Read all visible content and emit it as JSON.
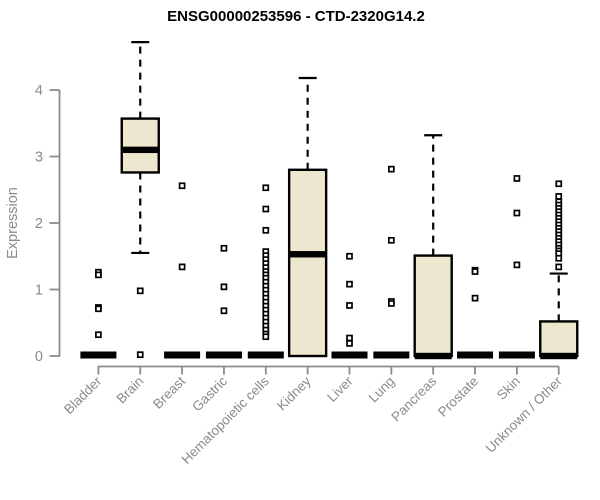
{
  "header": {
    "title": "ENSG00000253596 - CTD-2320G14.2"
  },
  "chart_data": {
    "type": "boxplot",
    "title": "ENSG00000253596 - CTD-2320G14.2",
    "ylabel": "Expression",
    "xlabel": "",
    "ylim": [
      0,
      4.8
    ],
    "yticks": [
      0,
      1,
      2,
      3,
      4
    ],
    "grid": false,
    "legend": "none",
    "categories": [
      "Bladder",
      "Brain",
      "Breast",
      "Gastric",
      "Hematopoietic cells",
      "Kidney",
      "Liver",
      "Lung",
      "Pancreas",
      "Prostate",
      "Skin",
      "Unknown / Other"
    ],
    "groups": [
      {
        "name": "Bladder",
        "q1": 0,
        "median": 0,
        "q3": 0,
        "whisker_low": 0,
        "whisker_high": 0,
        "outliers": [
          1.26,
          1.22,
          0.73,
          0.71,
          0.32
        ]
      },
      {
        "name": "Brain",
        "q1": 2.76,
        "median": 3.1,
        "q3": 3.57,
        "whisker_low": 1.55,
        "whisker_high": 4.72,
        "outliers": [
          0.98,
          0.02
        ]
      },
      {
        "name": "Breast",
        "q1": 0,
        "median": 0,
        "q3": 0,
        "whisker_low": 0,
        "whisker_high": 0,
        "outliers": [
          2.56,
          1.34
        ]
      },
      {
        "name": "Gastric",
        "q1": 0,
        "median": 0,
        "q3": 0,
        "whisker_low": 0,
        "whisker_high": 0,
        "outliers": [
          1.62,
          1.04,
          0.68
        ]
      },
      {
        "name": "Hematopoietic cells",
        "q1": 0,
        "median": 0,
        "q3": 0,
        "whisker_low": 0,
        "whisker_high": 0,
        "outliers": [
          2.53,
          2.21,
          1.89,
          1.57,
          1.51,
          1.45,
          1.39,
          1.33,
          1.27,
          1.22,
          1.17,
          1.11,
          1.05,
          0.99,
          0.93,
          0.87,
          0.81,
          0.75,
          0.69,
          0.63,
          0.57,
          0.51,
          0.45,
          0.39,
          0.33,
          0.29
        ]
      },
      {
        "name": "Kidney",
        "q1": 0,
        "median": 1.53,
        "q3": 2.8,
        "whisker_low": 0,
        "whisker_high": 4.18,
        "outliers": []
      },
      {
        "name": "Liver",
        "q1": 0,
        "median": 0,
        "q3": 0,
        "whisker_low": 0,
        "whisker_high": 0,
        "outliers": [
          1.5,
          1.08,
          0.76,
          0.27,
          0.19
        ]
      },
      {
        "name": "Lung",
        "q1": 0,
        "median": 0,
        "q3": 0,
        "whisker_low": 0,
        "whisker_high": 0,
        "outliers": [
          2.81,
          1.74,
          0.82,
          0.79
        ]
      },
      {
        "name": "Pancreas",
        "q1": 0,
        "median": 0,
        "q3": 1.51,
        "whisker_low": 0,
        "whisker_high": 3.32,
        "outliers": []
      },
      {
        "name": "Prostate",
        "q1": 0,
        "median": 0,
        "q3": 0,
        "whisker_low": 0,
        "whisker_high": 0,
        "outliers": [
          1.29,
          1.27,
          0.87
        ]
      },
      {
        "name": "Skin",
        "q1": 0,
        "median": 0,
        "q3": 0,
        "whisker_low": 0,
        "whisker_high": 0,
        "outliers": [
          2.67,
          2.15,
          1.37
        ]
      },
      {
        "name": "Unknown / Other",
        "q1": 0,
        "median": 0,
        "q3": 0.52,
        "whisker_low": 0,
        "whisker_high": 1.24,
        "outliers": [
          2.59,
          2.4,
          2.32,
          2.27,
          2.22,
          2.17,
          2.12,
          2.07,
          2.02,
          1.97,
          1.92,
          1.87,
          1.82,
          1.77,
          1.72,
          1.67,
          1.62,
          1.58,
          1.54,
          1.47,
          1.34
        ]
      }
    ],
    "colors": {
      "box_fill": "#ede7cf",
      "box_stroke": "#000000",
      "median": "#000000",
      "whisker": "#000000",
      "outlier_stroke": "#000000",
      "outlier_fill": "#ffffff",
      "axis": "#8b8b8b",
      "tick_label": "#8b8b8b",
      "axis_label": "#8b8b8b",
      "title": "#000000",
      "background": "#ffffff"
    }
  }
}
